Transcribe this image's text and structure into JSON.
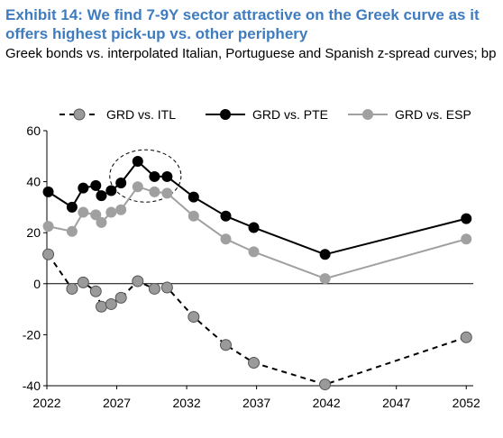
{
  "title": "Exhibit 14: We find 7-9Y sector attractive on the Greek curve as it offers highest pick-up vs. other periphery",
  "subtitle": "Greek bonds vs. interpolated Italian, Portuguese and Spanish z-spread curves; bp",
  "chart_data": {
    "type": "line",
    "title": "",
    "xlabel": "",
    "ylabel": "",
    "xlim": [
      2022,
      2052.5
    ],
    "ylim": [
      -40,
      60
    ],
    "xticks": [
      "2022",
      "2027",
      "2032",
      "2037",
      "2042",
      "2047",
      "2052"
    ],
    "yticks": [
      "60",
      "40",
      "20",
      "0",
      "-20",
      "-40"
    ],
    "legend_position": "top",
    "annotation": "dashed ellipse highlighting the 7-9Y sector (approx. 2026.5-2031.5, values 32-52 bp)",
    "series": [
      {
        "name": "GRD vs. ITL",
        "color": "#9a9a9a",
        "line_color": "#000000",
        "dash": true,
        "x": [
          2022.1,
          2023.8,
          2024.6,
          2025.5,
          2025.9,
          2026.6,
          2027.3,
          2028.5,
          2029.7,
          2030.6,
          2032.5,
          2034.8,
          2036.8,
          2041.9,
          2052
        ],
        "y": [
          11.5,
          -2,
          0.5,
          -3,
          -9,
          -8,
          -5.5,
          1,
          -2,
          -1.5,
          -13,
          -24,
          -31,
          -39.5,
          -21
        ]
      },
      {
        "name": "GRD vs. PTE",
        "color": "#000000",
        "line_color": "#000000",
        "dash": false,
        "x": [
          2022.1,
          2023.8,
          2024.6,
          2025.5,
          2025.9,
          2026.6,
          2027.3,
          2028.5,
          2029.7,
          2030.6,
          2032.5,
          2034.8,
          2036.8,
          2041.9,
          2052
        ],
        "y": [
          36,
          30,
          37.5,
          38.5,
          34.5,
          36.5,
          39.5,
          48,
          42,
          42,
          34,
          26.5,
          22,
          11.5,
          25.5
        ]
      },
      {
        "name": "GRD vs. ESP",
        "color": "#a0a0a0",
        "line_color": "#a0a0a0",
        "dash": false,
        "x": [
          2022.1,
          2023.8,
          2024.6,
          2025.5,
          2025.9,
          2026.6,
          2027.3,
          2028.5,
          2029.7,
          2030.6,
          2032.5,
          2034.8,
          2036.8,
          2041.9,
          2052
        ],
        "y": [
          22.5,
          20.5,
          28,
          27,
          24,
          28,
          29,
          38,
          36,
          35.5,
          26.5,
          17.5,
          12.5,
          2,
          17.5
        ]
      }
    ]
  }
}
